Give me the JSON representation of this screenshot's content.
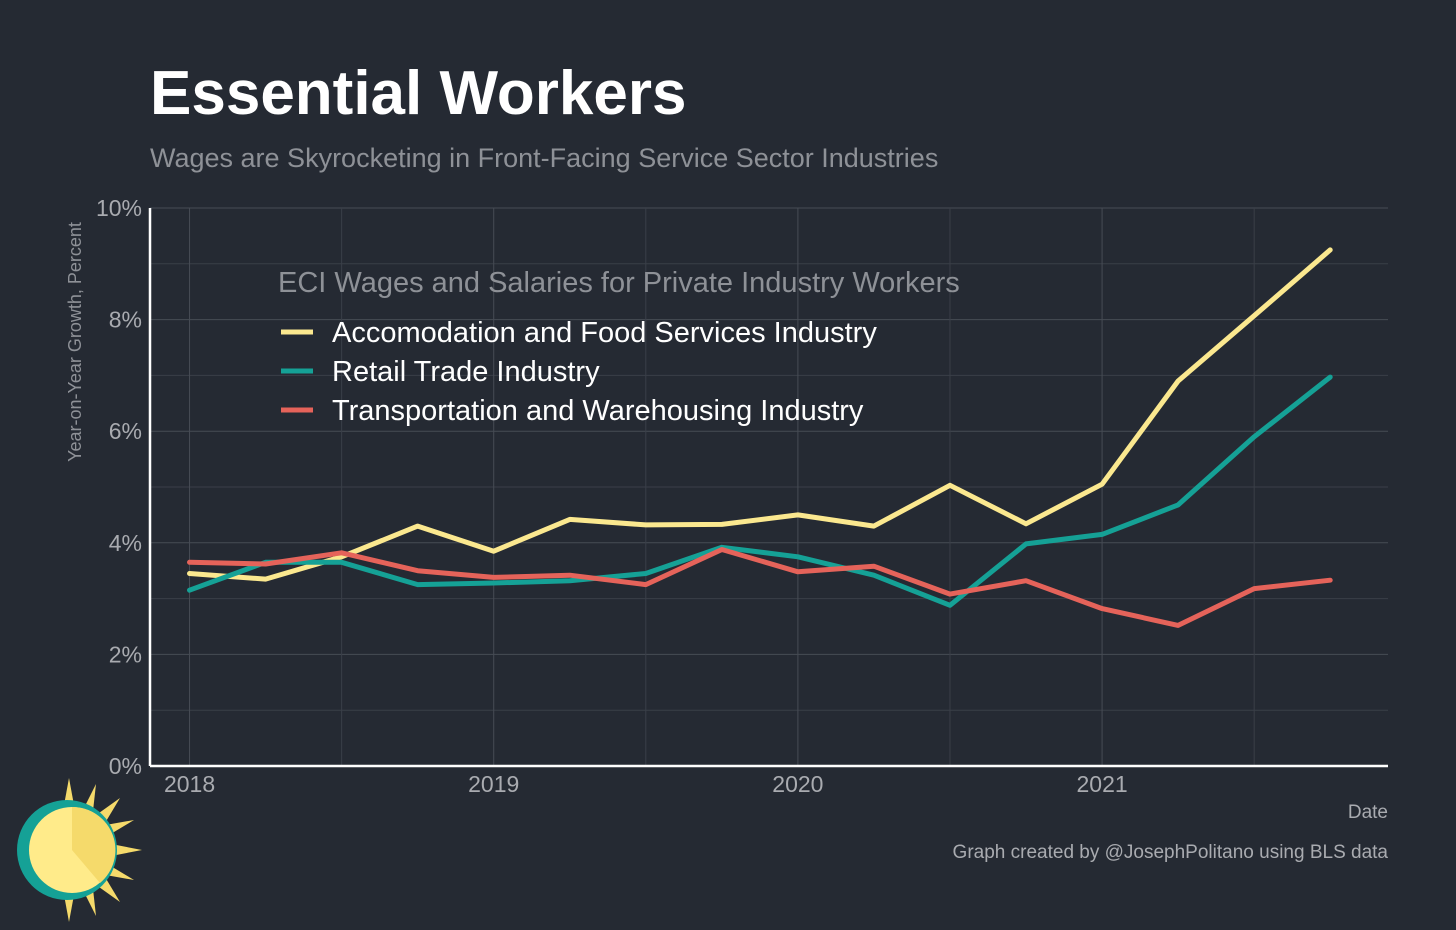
{
  "title": "Essential Workers",
  "subtitle": "Wages are Skyrocketing in Front-Facing Service Sector Industries",
  "caption": "Graph created by @JosephPolitano using BLS data",
  "chart_data": {
    "type": "line",
    "ylabel": "Year-on-Year Growth, Percent",
    "xlabel": "Date",
    "ylim": [
      0,
      10
    ],
    "xlim": [
      2017.87,
      2021.94
    ],
    "y_ticks": [
      0,
      2,
      4,
      6,
      8,
      10
    ],
    "y_tick_labels": [
      "0%",
      "2%",
      "4%",
      "6%",
      "8%",
      "10%"
    ],
    "x_ticks": [
      2018,
      2019,
      2020,
      2021
    ],
    "x_tick_labels": [
      "2018",
      "2019",
      "2020",
      "2021"
    ],
    "grid": true,
    "legend_title": "ECI Wages and Salaries for Private Industry Workers",
    "legend_position": "top-left",
    "x": [
      2018.0,
      2018.25,
      2018.5,
      2018.75,
      2019.0,
      2019.25,
      2019.5,
      2019.75,
      2020.0,
      2020.25,
      2020.5,
      2020.75,
      2021.0,
      2021.25,
      2021.5,
      2021.75
    ],
    "series": [
      {
        "name": "Accomodation and Food Services Industry",
        "color": "#fbe88f",
        "values": [
          3.45,
          3.35,
          3.75,
          4.3,
          3.85,
          4.42,
          4.32,
          4.33,
          4.5,
          4.3,
          5.03,
          4.34,
          5.05,
          6.9,
          8.07,
          9.25
        ]
      },
      {
        "name": "Retail Trade Industry",
        "color": "#15a196",
        "values": [
          3.15,
          3.65,
          3.65,
          3.25,
          3.28,
          3.32,
          3.45,
          3.92,
          3.75,
          3.42,
          2.88,
          3.98,
          4.15,
          4.68,
          5.9,
          6.97
        ]
      },
      {
        "name": "Transportation and Warehousing Industry",
        "color": "#e5635a",
        "values": [
          3.65,
          3.62,
          3.82,
          3.5,
          3.38,
          3.42,
          3.25,
          3.88,
          3.48,
          3.58,
          3.08,
          3.32,
          2.82,
          2.52,
          3.18,
          3.33
        ]
      }
    ]
  },
  "logo": {
    "icon": "sun-logo-icon",
    "colors": [
      "#f5da6b",
      "#15a196",
      "#ffeb8a"
    ]
  }
}
